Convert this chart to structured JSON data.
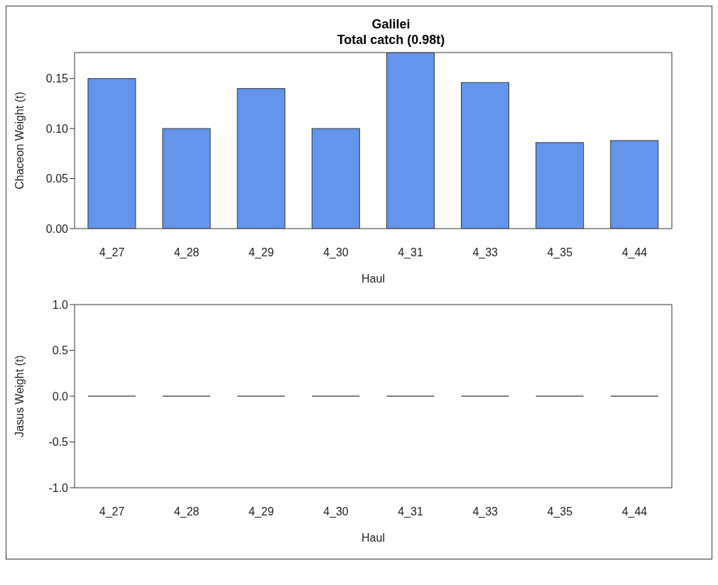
{
  "chart_data": [
    {
      "type": "bar",
      "title": "Galilei\nTotal catch (0.98t)",
      "categories": [
        "4_27",
        "4_28",
        "4_29",
        "4_30",
        "4_31",
        "4_33",
        "4_35",
        "4_44"
      ],
      "values": [
        0.15,
        0.1,
        0.14,
        0.1,
        0.176,
        0.146,
        0.086,
        0.088
      ],
      "color": "#6495ed",
      "ylim": [
        0,
        0.176
      ],
      "yticks": [
        {
          "value": 0,
          "label": "0.00"
        },
        {
          "value": 0.05,
          "label": "0.05"
        },
        {
          "value": 0.1,
          "label": "0.10"
        },
        {
          "value": 0.15,
          "label": "0.15"
        }
      ],
      "xlabel": "Haul",
      "ylabel": "Chaceon Weight (t)",
      "grid": false,
      "legend": false
    },
    {
      "type": "bar",
      "categories": [
        "4_27",
        "4_28",
        "4_29",
        "4_30",
        "4_31",
        "4_33",
        "4_35",
        "4_44"
      ],
      "values": [
        0,
        0,
        0,
        0,
        0,
        0,
        0,
        0
      ],
      "color": "#555555",
      "ylim": [
        -1,
        1
      ],
      "yticks": [
        {
          "value": -1,
          "label": "-1.0"
        },
        {
          "value": -0.5,
          "label": "-0.5"
        },
        {
          "value": 0,
          "label": "0.0"
        },
        {
          "value": 0.5,
          "label": "0.5"
        },
        {
          "value": 1,
          "label": "1.0"
        }
      ],
      "xlabel": "Haul",
      "ylabel": "Jasus Weight (t)",
      "grid": false,
      "legend": false
    }
  ]
}
